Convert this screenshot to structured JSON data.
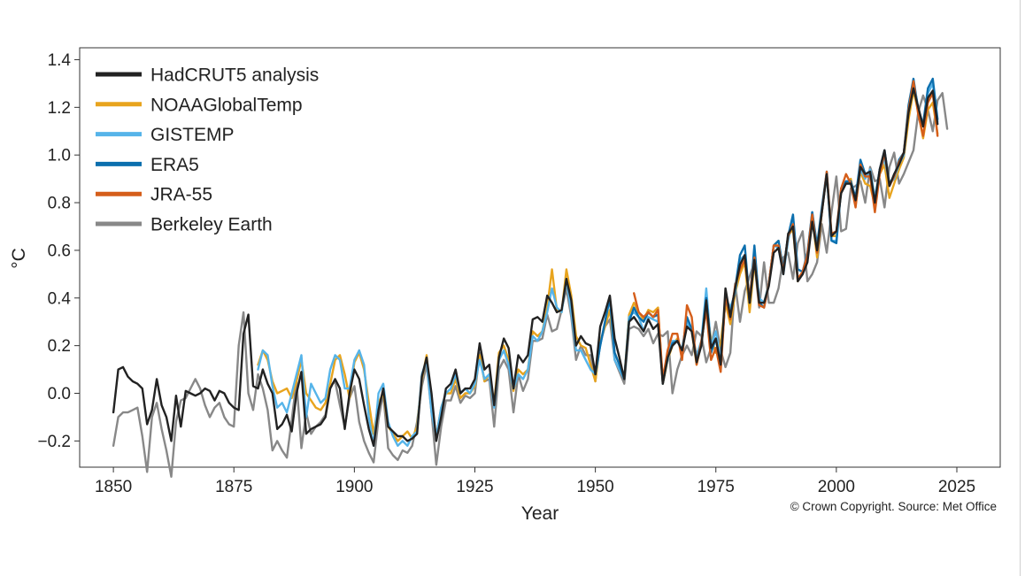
{
  "chart_data": {
    "type": "line",
    "title": "",
    "xlabel": "Year",
    "ylabel": "°C",
    "xlim": [
      1843,
      2034
    ],
    "ylim": [
      -0.31,
      1.45
    ],
    "xticks": [
      1850,
      1875,
      1900,
      1925,
      1950,
      1975,
      2000,
      2025
    ],
    "xtick_labels": [
      "1850",
      "1875",
      "1900",
      "1925",
      "1950",
      "1975",
      "2000",
      "2025"
    ],
    "yticks": [
      -0.2,
      0.0,
      0.2,
      0.4,
      0.6,
      0.8,
      1.0,
      1.2,
      1.4
    ],
    "ytick_labels": [
      "−0.2",
      "0.0",
      "0.2",
      "0.4",
      "0.6",
      "0.8",
      "1.0",
      "1.2",
      "1.4"
    ],
    "grid": false,
    "legend_position": "top-left",
    "credit": "© Crown Copyright. Source: Met Office",
    "series": [
      {
        "name": "Berkeley Earth",
        "color": "#888888",
        "start": 1850,
        "values": [
          -0.22,
          -0.1,
          -0.08,
          -0.08,
          -0.07,
          -0.06,
          -0.18,
          -0.33,
          -0.1,
          -0.04,
          -0.15,
          -0.24,
          -0.35,
          -0.12,
          -0.03,
          -0.02,
          0.02,
          0.06,
          0.02,
          -0.05,
          -0.1,
          -0.06,
          -0.04,
          -0.1,
          -0.13,
          -0.14,
          0.2,
          0.34,
          0.0,
          -0.07,
          0.08,
          0.02,
          -0.07,
          -0.24,
          -0.2,
          -0.24,
          -0.27,
          -0.11,
          0.05,
          -0.23,
          -0.08,
          -0.17,
          -0.14,
          -0.12,
          -0.09,
          0.03,
          0.05,
          -0.05,
          -0.14,
          -0.02,
          0.03,
          -0.12,
          -0.2,
          -0.25,
          -0.29,
          -0.11,
          0.0,
          -0.23,
          -0.26,
          -0.28,
          -0.24,
          -0.25,
          -0.22,
          -0.12,
          0.03,
          0.12,
          -0.08,
          -0.3,
          -0.14,
          -0.03,
          -0.03,
          0.03,
          -0.04,
          -0.01,
          -0.02,
          0.0,
          0.17,
          0.05,
          0.06,
          -0.14,
          0.1,
          0.14,
          0.1,
          -0.08,
          0.08,
          0.01,
          0.06,
          0.22,
          0.22,
          0.23,
          0.33,
          0.26,
          0.27,
          0.35,
          0.44,
          0.32,
          0.14,
          0.2,
          0.16,
          0.16,
          0.05,
          0.21,
          0.28,
          0.31,
          0.14,
          0.09,
          0.04,
          0.27,
          0.28,
          0.27,
          0.24,
          0.27,
          0.21,
          0.25,
          0.24,
          0.26,
          0.0,
          0.1,
          0.16,
          0.2,
          0.16,
          0.26,
          0.24,
          0.13,
          0.19,
          0.3,
          0.18,
          0.11,
          0.17,
          0.46,
          0.3,
          0.43,
          0.49,
          0.55,
          0.36,
          0.55,
          0.38,
          0.38,
          0.44,
          0.57,
          0.59,
          0.48,
          0.63,
          0.68,
          0.47,
          0.5,
          0.55,
          0.71,
          0.59,
          0.76,
          0.91,
          0.68,
          0.69,
          0.86,
          0.87,
          0.89,
          0.8,
          0.95,
          0.89,
          0.9,
          0.78,
          0.95,
          1.01,
          0.88,
          0.92,
          0.97,
          1.02,
          1.18,
          1.25,
          1.19,
          1.1,
          1.23,
          1.26,
          1.11
        ]
      },
      {
        "name": "NOAAGlobalTemp",
        "color": "#e8a41e",
        "start": 1880,
        "values": [
          0.12,
          0.18,
          0.14,
          0.05,
          0.0,
          0.01,
          0.02,
          -0.02,
          0.05,
          0.14,
          0.0,
          -0.03,
          -0.06,
          -0.07,
          -0.04,
          0.04,
          0.14,
          0.16,
          0.08,
          -0.02,
          0.13,
          0.17,
          0.1,
          -0.04,
          -0.17,
          -0.04,
          0.0,
          -0.14,
          -0.17,
          -0.2,
          -0.18,
          -0.16,
          -0.19,
          -0.14,
          0.06,
          0.16,
          -0.06,
          -0.18,
          -0.06,
          0.0,
          0.0,
          0.06,
          -0.02,
          0.0,
          0.0,
          0.03,
          0.16,
          0.05,
          0.08,
          -0.04,
          0.17,
          0.2,
          0.14,
          0.01,
          0.1,
          0.08,
          0.1,
          0.26,
          0.24,
          0.26,
          0.36,
          0.52,
          0.35,
          0.34,
          0.52,
          0.41,
          0.24,
          0.2,
          0.19,
          0.12,
          0.05,
          0.22,
          0.28,
          0.35,
          0.17,
          0.12,
          0.06,
          0.33,
          0.38,
          0.34,
          0.31,
          0.35,
          0.34,
          0.36,
          0.04,
          0.14,
          0.2,
          0.23,
          0.17,
          0.3,
          0.26,
          0.12,
          0.21,
          0.37,
          0.23,
          0.17,
          0.21,
          0.38,
          0.29,
          0.42,
          0.5,
          0.55,
          0.34,
          0.55,
          0.38,
          0.38,
          0.46,
          0.62,
          0.64,
          0.51,
          0.66,
          0.69,
          0.47,
          0.51,
          0.57,
          0.74,
          0.57,
          0.76,
          0.92,
          0.66,
          0.66,
          0.85,
          0.88,
          0.9,
          0.79,
          0.93,
          0.88,
          0.87,
          0.79,
          0.92,
          0.96,
          0.82,
          0.88,
          0.94,
          0.99,
          1.15,
          1.27,
          1.18,
          1.07,
          1.19,
          1.22,
          1.09
        ]
      },
      {
        "name": "GISTEMP",
        "color": "#56b4e9",
        "start": 1880,
        "values": [
          0.1,
          0.18,
          0.16,
          0.03,
          -0.06,
          -0.04,
          -0.08,
          0.0,
          0.08,
          0.16,
          -0.1,
          0.04,
          0.0,
          -0.04,
          -0.02,
          0.1,
          0.16,
          0.14,
          0.02,
          0.02,
          0.14,
          0.18,
          0.12,
          -0.1,
          -0.22,
          0.0,
          0.04,
          -0.12,
          -0.18,
          -0.22,
          -0.2,
          -0.22,
          -0.18,
          -0.16,
          0.08,
          0.14,
          -0.08,
          -0.18,
          -0.06,
          0.0,
          0.02,
          0.08,
          0.0,
          0.02,
          0.0,
          0.04,
          0.14,
          0.06,
          0.08,
          -0.06,
          0.14,
          0.18,
          0.12,
          0.02,
          0.08,
          0.06,
          0.1,
          0.24,
          0.22,
          0.26,
          0.34,
          0.44,
          0.36,
          0.34,
          0.48,
          0.34,
          0.18,
          0.18,
          0.14,
          0.1,
          0.08,
          0.2,
          0.3,
          0.4,
          0.14,
          0.1,
          0.06,
          0.32,
          0.34,
          0.32,
          0.26,
          0.32,
          0.31,
          0.3,
          0.06,
          0.14,
          0.22,
          0.22,
          0.18,
          0.3,
          0.26,
          0.16,
          0.22,
          0.44,
          0.2,
          0.26,
          0.14,
          0.4,
          0.36,
          0.42,
          0.56,
          0.58,
          0.38,
          0.58,
          0.4,
          0.38,
          0.46,
          0.62,
          0.61,
          0.5,
          0.64,
          0.74,
          0.48,
          0.5,
          0.58,
          0.76,
          0.6,
          0.76,
          0.92,
          0.64,
          0.64,
          0.86,
          0.88,
          0.88,
          0.8,
          0.94,
          0.9,
          0.94,
          0.82,
          0.94,
          0.98,
          0.88,
          0.9,
          0.96,
          1.0,
          1.2,
          1.3,
          1.2,
          1.12,
          1.26,
          1.3,
          1.14
        ]
      },
      {
        "name": "ERA5",
        "color": "#0c6fae",
        "start": 1950,
        "values": [
          0.08,
          0.2,
          0.3,
          0.4,
          0.17,
          0.12,
          0.06,
          0.3,
          0.36,
          0.32,
          0.3,
          0.34,
          0.32,
          0.33,
          0.04,
          0.15,
          0.21,
          0.22,
          0.18,
          0.32,
          0.27,
          0.14,
          0.21,
          0.4,
          0.17,
          0.23,
          0.12,
          0.4,
          0.33,
          0.44,
          0.58,
          0.62,
          0.38,
          0.62,
          0.38,
          0.36,
          0.46,
          0.62,
          0.64,
          0.52,
          0.66,
          0.75,
          0.52,
          0.51,
          0.59,
          0.76,
          0.62,
          0.78,
          0.93,
          0.64,
          0.63,
          0.86,
          0.89,
          0.89,
          0.82,
          0.98,
          0.92,
          0.93,
          0.8,
          0.94,
          1.02,
          0.88,
          0.91,
          0.98,
          1.01,
          1.21,
          1.32,
          1.19,
          1.13,
          1.28,
          1.32,
          1.15
        ]
      },
      {
        "name": "JRA-55",
        "color": "#d55e1a",
        "start": 1958,
        "values": [
          0.42,
          0.34,
          0.32,
          0.34,
          0.32,
          0.35,
          0.06,
          0.18,
          0.25,
          0.25,
          0.14,
          0.37,
          0.32,
          0.12,
          0.22,
          0.35,
          0.14,
          0.19,
          0.09,
          0.41,
          0.31,
          0.45,
          0.52,
          0.56,
          0.4,
          0.57,
          0.37,
          0.36,
          0.46,
          0.62,
          0.62,
          0.51,
          0.66,
          0.71,
          0.48,
          0.51,
          0.58,
          0.75,
          0.59,
          0.76,
          0.93,
          0.67,
          0.68,
          0.86,
          0.92,
          0.88,
          0.78,
          0.96,
          0.91,
          0.91,
          0.76,
          0.92,
          1.01,
          0.87,
          0.91,
          0.97,
          1.01,
          1.19,
          1.31,
          1.17,
          1.08,
          1.22,
          1.26,
          1.08
        ]
      },
      {
        "name": "HadCRUT5 analysis",
        "color": "#222222",
        "start": 1850,
        "values": [
          -0.08,
          0.1,
          0.11,
          0.07,
          0.05,
          0.04,
          0.02,
          -0.13,
          -0.07,
          0.06,
          -0.05,
          -0.1,
          -0.2,
          -0.01,
          -0.14,
          0.01,
          0.0,
          -0.01,
          0.0,
          0.02,
          0.01,
          -0.03,
          0.01,
          0.0,
          -0.04,
          -0.06,
          -0.07,
          0.25,
          0.33,
          0.03,
          0.02,
          0.1,
          0.04,
          0.0,
          -0.15,
          -0.13,
          -0.09,
          -0.16,
          0.0,
          0.09,
          -0.17,
          -0.15,
          -0.14,
          -0.13,
          -0.1,
          0.02,
          0.06,
          0.02,
          -0.15,
          0.0,
          0.1,
          0.06,
          -0.05,
          -0.15,
          -0.22,
          -0.07,
          0.02,
          -0.14,
          -0.16,
          -0.18,
          -0.18,
          -0.2,
          -0.19,
          -0.17,
          0.07,
          0.15,
          0.0,
          -0.2,
          -0.1,
          0.02,
          0.04,
          0.1,
          0.0,
          0.02,
          0.02,
          0.06,
          0.21,
          0.1,
          0.12,
          -0.05,
          0.15,
          0.23,
          0.19,
          0.02,
          0.16,
          0.13,
          0.16,
          0.31,
          0.32,
          0.3,
          0.41,
          0.38,
          0.34,
          0.35,
          0.48,
          0.39,
          0.2,
          0.24,
          0.21,
          0.2,
          0.08,
          0.28,
          0.34,
          0.41,
          0.23,
          0.15,
          0.06,
          0.3,
          0.32,
          0.29,
          0.26,
          0.31,
          0.27,
          0.29,
          0.04,
          0.15,
          0.2,
          0.22,
          0.18,
          0.28,
          0.26,
          0.13,
          0.2,
          0.39,
          0.19,
          0.23,
          0.12,
          0.44,
          0.32,
          0.44,
          0.54,
          0.58,
          0.38,
          0.56,
          0.38,
          0.38,
          0.45,
          0.59,
          0.61,
          0.5,
          0.67,
          0.7,
          0.47,
          0.5,
          0.55,
          0.72,
          0.6,
          0.76,
          0.92,
          0.66,
          0.68,
          0.84,
          0.88,
          0.88,
          0.81,
          0.95,
          0.92,
          0.93,
          0.8,
          0.94,
          1.02,
          0.87,
          0.92,
          0.96,
          1.01,
          1.18,
          1.28,
          1.2,
          1.12,
          1.24,
          1.27,
          1.13
        ]
      }
    ],
    "legend": [
      {
        "name": "HadCRUT5 analysis",
        "color": "#222222"
      },
      {
        "name": "NOAAGlobalTemp",
        "color": "#e8a41e"
      },
      {
        "name": "GISTEMP",
        "color": "#56b4e9"
      },
      {
        "name": "ERA5",
        "color": "#0c6fae"
      },
      {
        "name": "JRA-55",
        "color": "#d55e1a"
      },
      {
        "name": "Berkeley Earth",
        "color": "#888888"
      }
    ]
  }
}
